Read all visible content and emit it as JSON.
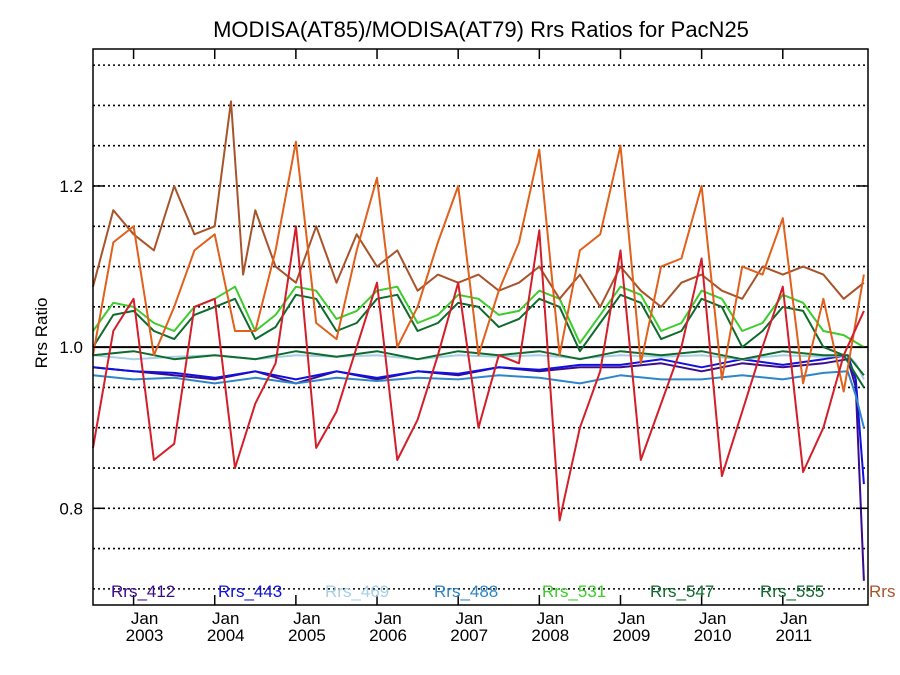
{
  "chart_data": {
    "type": "line",
    "title": "MODISA(AT85)/MODISA(AT79)  Rrs Ratios for PacN25",
    "xlabel": "",
    "ylabel": "Rrs Ratio",
    "xlim": [
      2002.5,
      2012.05
    ],
    "ylim": [
      0.68,
      1.37
    ],
    "y_ticks": [
      0.8,
      1.0,
      1.2
    ],
    "y_tick_labels": [
      "0.8",
      "1.0",
      "1.2"
    ],
    "x_ticks": [
      {
        "year": 2003,
        "line1": "Jan",
        "line2": "2003"
      },
      {
        "year": 2004,
        "line1": "Jan",
        "line2": "2004"
      },
      {
        "year": 2005,
        "line1": "Jan",
        "line2": "2005"
      },
      {
        "year": 2006,
        "line1": "Jan",
        "line2": "2006"
      },
      {
        "year": 2007,
        "line1": "Jan",
        "line2": "2007"
      },
      {
        "year": 2008,
        "line1": "Jan",
        "line2": "2008"
      },
      {
        "year": 2009,
        "line1": "Jan",
        "line2": "2009"
      },
      {
        "year": 2010,
        "line1": "Jan",
        "line2": "2010"
      },
      {
        "year": 2011,
        "line1": "Jan",
        "line2": "2011"
      }
    ],
    "grid_lines": [
      0.7,
      0.75,
      0.8,
      0.85,
      0.9,
      0.95,
      1.05,
      1.1,
      1.15,
      1.2,
      1.25,
      1.3,
      1.35
    ],
    "reference_line": 1.0,
    "grid": true,
    "legend_position": "bottom",
    "series": [
      {
        "name": "Rrs_412",
        "color": "#3a0b8c",
        "x": [
          2002.5,
          2003.0,
          2003.5,
          2004.0,
          2004.5,
          2005.0,
          2005.5,
          2006.0,
          2006.5,
          2007.0,
          2007.5,
          2008.0,
          2008.5,
          2009.0,
          2009.5,
          2010.0,
          2010.5,
          2011.0,
          2011.5,
          2011.8,
          2011.9,
          2012.0
        ],
        "values": [
          0.975,
          0.97,
          0.965,
          0.96,
          0.97,
          0.955,
          0.97,
          0.96,
          0.97,
          0.965,
          0.975,
          0.97,
          0.975,
          0.975,
          0.98,
          0.97,
          0.98,
          0.975,
          0.98,
          0.985,
          0.95,
          0.71
        ]
      },
      {
        "name": "Rrs_443",
        "color": "#1010e0",
        "x": [
          2002.5,
          2003.0,
          2003.5,
          2004.0,
          2004.5,
          2005.0,
          2005.5,
          2006.0,
          2006.5,
          2007.0,
          2007.5,
          2008.0,
          2008.5,
          2009.0,
          2009.5,
          2010.0,
          2010.5,
          2011.0,
          2011.5,
          2011.8,
          2011.9,
          2012.0
        ],
        "values": [
          0.975,
          0.97,
          0.968,
          0.962,
          0.97,
          0.96,
          0.97,
          0.962,
          0.97,
          0.967,
          0.975,
          0.972,
          0.978,
          0.978,
          0.985,
          0.975,
          0.985,
          0.978,
          0.985,
          0.99,
          0.96,
          0.83
        ]
      },
      {
        "name": "Rrs_469",
        "color": "#a6cfe6",
        "x": [
          2002.5,
          2003.0,
          2003.5,
          2004.0,
          2004.5,
          2005.0,
          2005.5,
          2006.0,
          2006.5,
          2007.0,
          2007.5,
          2008.0,
          2008.5,
          2009.0,
          2009.5,
          2010.0,
          2010.5,
          2011.0,
          2011.5,
          2011.8,
          2011.9,
          2012.0
        ],
        "values": [
          0.99,
          0.985,
          0.988,
          0.99,
          0.985,
          0.99,
          0.988,
          0.99,
          0.985,
          0.99,
          0.988,
          0.99,
          0.986,
          0.99,
          0.988,
          0.99,
          0.985,
          0.99,
          0.988,
          0.99,
          0.98,
          0.96
        ]
      },
      {
        "name": "Rrs_488",
        "color": "#2e86c8",
        "x": [
          2002.5,
          2003.0,
          2003.5,
          2004.0,
          2004.5,
          2005.0,
          2005.5,
          2006.0,
          2006.5,
          2007.0,
          2007.5,
          2008.0,
          2008.5,
          2009.0,
          2009.5,
          2010.0,
          2010.5,
          2011.0,
          2011.5,
          2011.8,
          2011.9,
          2012.0
        ],
        "values": [
          0.965,
          0.96,
          0.962,
          0.955,
          0.962,
          0.955,
          0.962,
          0.958,
          0.962,
          0.96,
          0.965,
          0.962,
          0.955,
          0.965,
          0.96,
          0.96,
          0.965,
          0.96,
          0.968,
          0.97,
          0.94,
          0.9
        ]
      },
      {
        "name": "Rrs_531",
        "color": "#3ccc2c",
        "x": [
          2002.5,
          2002.75,
          2003.0,
          2003.25,
          2003.5,
          2003.75,
          2004.0,
          2004.25,
          2004.5,
          2004.75,
          2005.0,
          2005.25,
          2005.5,
          2005.75,
          2006.0,
          2006.25,
          2006.5,
          2006.75,
          2007.0,
          2007.25,
          2007.5,
          2007.75,
          2008.0,
          2008.25,
          2008.5,
          2008.75,
          2009.0,
          2009.25,
          2009.5,
          2009.75,
          2010.0,
          2010.25,
          2010.5,
          2010.75,
          2011.0,
          2011.25,
          2011.5,
          2011.75,
          2012.0
        ],
        "values": [
          1.02,
          1.055,
          1.05,
          1.03,
          1.02,
          1.05,
          1.06,
          1.075,
          1.02,
          1.04,
          1.075,
          1.07,
          1.035,
          1.045,
          1.07,
          1.075,
          1.03,
          1.04,
          1.065,
          1.06,
          1.04,
          1.045,
          1.07,
          1.06,
          1.005,
          1.04,
          1.075,
          1.065,
          1.02,
          1.03,
          1.07,
          1.06,
          1.02,
          1.03,
          1.065,
          1.055,
          1.02,
          1.015,
          1.0
        ]
      },
      {
        "name": "Rrs_547",
        "color": "#0d6b2c",
        "x": [
          2002.5,
          2002.75,
          2003.0,
          2003.25,
          2003.5,
          2003.75,
          2004.0,
          2004.25,
          2004.5,
          2004.75,
          2005.0,
          2005.25,
          2005.5,
          2005.75,
          2006.0,
          2006.25,
          2006.5,
          2006.75,
          2007.0,
          2007.25,
          2007.5,
          2007.75,
          2008.0,
          2008.25,
          2008.5,
          2008.75,
          2009.0,
          2009.25,
          2009.5,
          2009.75,
          2010.0,
          2010.25,
          2010.5,
          2010.75,
          2011.0,
          2011.25,
          2011.5,
          2011.75,
          2012.0
        ],
        "values": [
          1.0,
          1.04,
          1.045,
          1.02,
          1.01,
          1.04,
          1.05,
          1.06,
          1.01,
          1.025,
          1.065,
          1.06,
          1.02,
          1.03,
          1.06,
          1.065,
          1.02,
          1.03,
          1.055,
          1.05,
          1.025,
          1.035,
          1.06,
          1.05,
          0.995,
          1.03,
          1.065,
          1.055,
          1.01,
          1.02,
          1.06,
          1.05,
          1.0,
          1.02,
          1.05,
          1.045,
          1.0,
          0.99,
          0.95
        ]
      },
      {
        "name": "Rrs_555",
        "color": "#0d6b2c",
        "x": [
          2002.5,
          2003.0,
          2003.5,
          2004.0,
          2004.5,
          2005.0,
          2005.5,
          2006.0,
          2006.5,
          2007.0,
          2007.5,
          2008.0,
          2008.5,
          2009.0,
          2009.5,
          2010.0,
          2010.5,
          2011.0,
          2011.5,
          2011.8,
          2012.0
        ],
        "values": [
          0.99,
          0.995,
          0.985,
          0.99,
          0.985,
          0.995,
          0.988,
          0.995,
          0.985,
          0.995,
          0.99,
          0.995,
          0.985,
          0.995,
          0.99,
          0.995,
          0.985,
          0.995,
          0.99,
          0.99,
          0.965
        ]
      },
      {
        "name": "Rrs",
        "color": "#a8542a",
        "x": [
          2002.5,
          2002.75,
          2003.0,
          2003.25,
          2003.5,
          2003.75,
          2004.0,
          2004.2,
          2004.35,
          2004.5,
          2004.75,
          2005.0,
          2005.25,
          2005.5,
          2005.75,
          2006.0,
          2006.25,
          2006.5,
          2006.75,
          2007.0,
          2007.25,
          2007.5,
          2007.75,
          2008.0,
          2008.25,
          2008.5,
          2008.75,
          2009.0,
          2009.25,
          2009.5,
          2009.75,
          2010.0,
          2010.25,
          2010.5,
          2010.75,
          2011.0,
          2011.25,
          2011.5,
          2011.75,
          2012.0
        ],
        "values": [
          1.075,
          1.17,
          1.14,
          1.12,
          1.2,
          1.14,
          1.15,
          1.305,
          1.09,
          1.17,
          1.1,
          1.08,
          1.15,
          1.08,
          1.14,
          1.1,
          1.12,
          1.07,
          1.09,
          1.08,
          1.09,
          1.07,
          1.08,
          1.1,
          1.06,
          1.09,
          1.05,
          1.1,
          1.07,
          1.05,
          1.08,
          1.09,
          1.07,
          1.06,
          1.1,
          1.09,
          1.1,
          1.09,
          1.06,
          1.08
        ]
      },
      {
        "name": "",
        "color": "#e0601c",
        "x": [
          2002.5,
          2002.75,
          2003.0,
          2003.25,
          2003.5,
          2003.75,
          2004.0,
          2004.25,
          2004.5,
          2004.75,
          2005.0,
          2005.25,
          2005.5,
          2005.75,
          2006.0,
          2006.25,
          2006.5,
          2006.75,
          2007.0,
          2007.25,
          2007.5,
          2007.75,
          2008.0,
          2008.25,
          2008.5,
          2008.75,
          2009.0,
          2009.25,
          2009.5,
          2009.75,
          2010.0,
          2010.25,
          2010.5,
          2010.75,
          2011.0,
          2011.25,
          2011.5,
          2011.75,
          2012.0
        ],
        "values": [
          0.99,
          1.13,
          1.15,
          0.99,
          1.05,
          1.12,
          1.14,
          1.02,
          1.02,
          1.12,
          1.255,
          1.03,
          1.01,
          1.12,
          1.21,
          1.0,
          1.05,
          1.13,
          1.2,
          0.99,
          1.07,
          1.13,
          1.245,
          0.99,
          1.12,
          1.14,
          1.25,
          0.98,
          1.1,
          1.11,
          1.2,
          0.96,
          1.1,
          1.09,
          1.16,
          0.955,
          1.06,
          0.945,
          1.09
        ]
      },
      {
        "name": "",
        "color": "#d21f2a",
        "x": [
          2002.5,
          2002.75,
          2003.0,
          2003.25,
          2003.5,
          2003.75,
          2004.0,
          2004.25,
          2004.5,
          2004.75,
          2005.0,
          2005.25,
          2005.5,
          2005.75,
          2006.0,
          2006.25,
          2006.5,
          2006.75,
          2007.0,
          2007.25,
          2007.5,
          2007.75,
          2008.0,
          2008.25,
          2008.5,
          2008.75,
          2009.0,
          2009.25,
          2009.5,
          2009.75,
          2010.0,
          2010.25,
          2010.5,
          2010.75,
          2011.0,
          2011.25,
          2011.5,
          2011.75,
          2012.0
        ],
        "values": [
          0.875,
          1.02,
          1.06,
          0.86,
          0.88,
          1.05,
          1.06,
          0.85,
          0.93,
          0.98,
          1.15,
          0.875,
          0.92,
          1.0,
          1.08,
          0.86,
          0.91,
          0.99,
          1.08,
          0.9,
          0.99,
          0.98,
          1.145,
          0.785,
          0.9,
          0.97,
          1.12,
          0.86,
          0.93,
          1.0,
          1.11,
          0.84,
          0.92,
          1.0,
          1.075,
          0.845,
          0.9,
          0.99,
          1.045
        ]
      }
    ]
  }
}
